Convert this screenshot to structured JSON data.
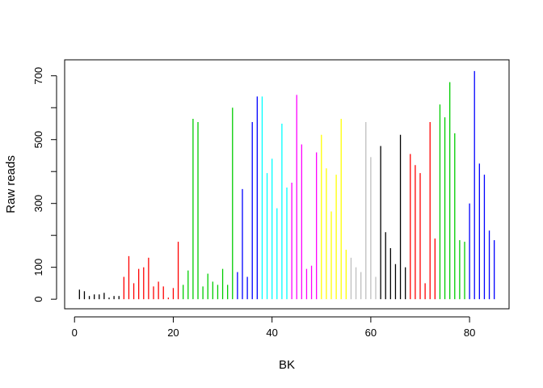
{
  "chart_data": {
    "type": "bar",
    "title": "",
    "xlabel": "BK",
    "ylabel": "Raw reads",
    "xlim": [
      -2,
      88
    ],
    "ylim": [
      -30,
      750
    ],
    "x_ticks": [
      0,
      20,
      40,
      60,
      80
    ],
    "y_ticks": [
      0,
      100,
      300,
      500,
      700
    ],
    "y_minor_ticks": [
      200,
      400,
      600
    ],
    "grid": false,
    "legend": "none",
    "x": [
      1,
      2,
      3,
      4,
      5,
      6,
      7,
      8,
      9,
      10,
      11,
      12,
      13,
      14,
      15,
      16,
      17,
      18,
      19,
      20,
      21,
      22,
      23,
      24,
      25,
      26,
      27,
      28,
      29,
      30,
      31,
      32,
      33,
      34,
      35,
      36,
      37,
      38,
      39,
      40,
      41,
      42,
      43,
      44,
      45,
      46,
      47,
      48,
      49,
      50,
      51,
      52,
      53,
      54,
      55,
      56,
      57,
      58,
      59,
      60,
      61,
      62,
      63,
      64,
      65,
      66,
      67,
      68,
      69,
      70,
      71,
      72,
      73,
      74,
      75,
      76,
      77,
      78,
      79,
      80,
      81,
      82,
      83,
      84,
      85
    ],
    "values": [
      30,
      25,
      10,
      15,
      15,
      20,
      5,
      10,
      10,
      70,
      135,
      50,
      95,
      100,
      130,
      40,
      55,
      40,
      5,
      35,
      180,
      45,
      90,
      565,
      555,
      40,
      80,
      55,
      45,
      95,
      45,
      600,
      85,
      345,
      70,
      555,
      635,
      635,
      395,
      440,
      285,
      550,
      350,
      365,
      640,
      485,
      95,
      105,
      460,
      515,
      410,
      275,
      390,
      565,
      155,
      130,
      100,
      85,
      555,
      445,
      70,
      480,
      210,
      160,
      110,
      515,
      100,
      455,
      420,
      395,
      50,
      555,
      190,
      610,
      570,
      680,
      520,
      185,
      180,
      300,
      715,
      425,
      390,
      215,
      185
    ],
    "colors": [
      "#000000",
      "#000000",
      "#000000",
      "#000000",
      "#000000",
      "#000000",
      "#000000",
      "#000000",
      "#000000",
      "#ff0000",
      "#ff0000",
      "#ff0000",
      "#ff0000",
      "#ff0000",
      "#ff0000",
      "#ff0000",
      "#ff0000",
      "#ff0000",
      "#ff0000",
      "#ff0000",
      "#ff0000",
      "#00cd00",
      "#00cd00",
      "#00cd00",
      "#00cd00",
      "#00cd00",
      "#00cd00",
      "#00cd00",
      "#00cd00",
      "#00cd00",
      "#00cd00",
      "#00cd00",
      "#0000ff",
      "#0000ff",
      "#0000ff",
      "#0000ff",
      "#0000ff",
      "#00ffff",
      "#00ffff",
      "#00ffff",
      "#00ffff",
      "#00ffff",
      "#00ffff",
      "#ff00ff",
      "#ff00ff",
      "#ff00ff",
      "#ff00ff",
      "#ff00ff",
      "#ff00ff",
      "#ffff00",
      "#ffff00",
      "#ffff00",
      "#ffff00",
      "#ffff00",
      "#ffff00",
      "#bebebe",
      "#bebebe",
      "#bebebe",
      "#bebebe",
      "#bebebe",
      "#bebebe",
      "#000000",
      "#000000",
      "#000000",
      "#000000",
      "#000000",
      "#000000",
      "#ff0000",
      "#ff0000",
      "#ff0000",
      "#ff0000",
      "#ff0000",
      "#ff0000",
      "#00cd00",
      "#00cd00",
      "#00cd00",
      "#00cd00",
      "#00cd00",
      "#00cd00",
      "#0000ff",
      "#0000ff",
      "#0000ff",
      "#0000ff",
      "#0000ff",
      "#0000ff"
    ]
  }
}
